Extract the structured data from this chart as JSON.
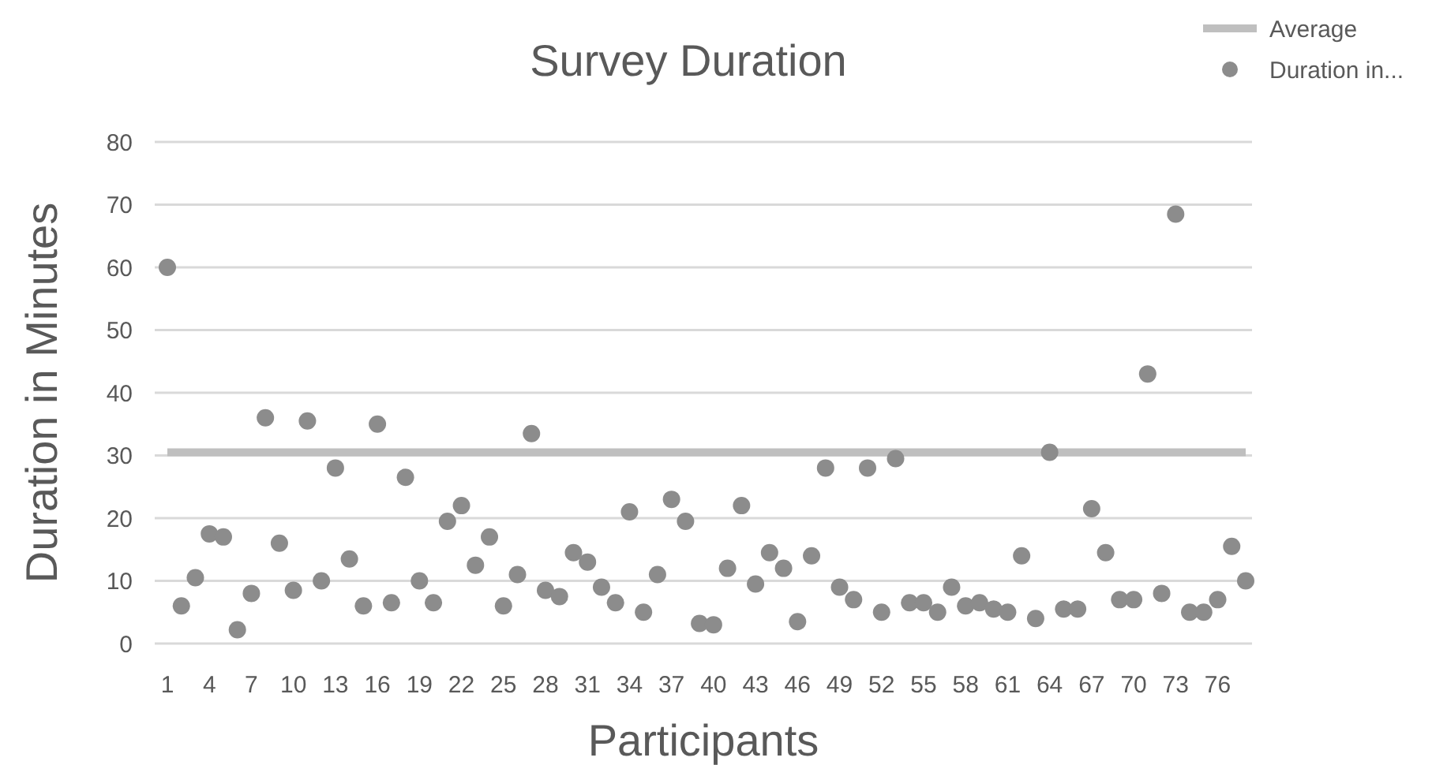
{
  "chart_data": {
    "type": "scatter",
    "title": "Survey Duration",
    "xlabel": "Participants",
    "ylabel": "Duration in Minutes",
    "categories": [
      "1",
      null,
      null,
      "4",
      null,
      null,
      "7",
      null,
      null,
      "10",
      null,
      null,
      "13",
      null,
      null,
      "16",
      null,
      null,
      "19",
      null,
      null,
      "22",
      null,
      null,
      "25",
      null,
      null,
      "28",
      null,
      null,
      "31",
      null,
      null,
      "34",
      null,
      null,
      "37",
      null,
      null,
      "40",
      null,
      null,
      "43",
      null,
      null,
      "46",
      null,
      null,
      "49",
      null,
      null,
      "52",
      null,
      null,
      "55",
      null,
      null,
      "58",
      null,
      null,
      "61",
      null,
      null,
      "64",
      null,
      null,
      "67",
      null,
      null,
      "70",
      null,
      null,
      "73",
      null,
      null,
      "76",
      null,
      null
    ],
    "series": [
      {
        "name": "Average",
        "type": "line",
        "marker": "none",
        "color": "#bfbfbf",
        "values": [
          30.5,
          30.5,
          30.5,
          30.5,
          30.5,
          30.5,
          30.5,
          30.5,
          30.5,
          30.5,
          30.5,
          30.5,
          30.5,
          30.5,
          30.5,
          30.5,
          30.5,
          30.5,
          30.5,
          30.5,
          30.5,
          30.5,
          30.5,
          30.5,
          30.5,
          30.5,
          30.5,
          30.5,
          30.5,
          30.5,
          30.5,
          30.5,
          30.5,
          30.5,
          30.5,
          30.5,
          30.5,
          30.5,
          30.5,
          30.5,
          30.5,
          30.5,
          30.5,
          30.5,
          30.5,
          30.5,
          30.5,
          30.5,
          30.5,
          30.5,
          30.5,
          30.5,
          30.5,
          30.5,
          30.5,
          30.5,
          30.5,
          30.5,
          30.5,
          30.5,
          30.5,
          30.5,
          30.5,
          30.5,
          30.5,
          30.5,
          30.5,
          30.5,
          30.5,
          30.5,
          30.5,
          30.5,
          30.5,
          30.5,
          30.5,
          30.5,
          30.5,
          30.5
        ]
      },
      {
        "name": "Duration in...",
        "marker": "circle",
        "color": "#8c8c8c",
        "values": [
          60,
          6,
          10.5,
          17.5,
          17,
          2.2,
          8,
          36,
          16,
          8.5,
          35.5,
          10,
          28,
          13.5,
          6,
          35,
          6.5,
          26.5,
          10,
          6.5,
          19.5,
          22,
          12.5,
          17,
          6,
          11,
          33.5,
          8.5,
          7.5,
          14.5,
          13,
          9,
          6.5,
          21,
          5,
          11,
          23,
          19.5,
          3.2,
          3,
          12,
          22,
          9.5,
          14.5,
          12,
          3.5,
          14,
          28,
          9,
          7,
          28,
          5,
          29.5,
          6.5,
          6.5,
          5,
          9,
          6,
          6.5,
          5.5,
          5,
          14,
          4,
          30.5,
          5.5,
          5.5,
          21.5,
          14.5,
          7,
          7,
          43,
          8,
          68.5,
          5,
          5,
          7,
          15.5,
          10
        ]
      }
    ],
    "ylim": [
      0,
      80
    ],
    "yticks": [
      0,
      10,
      20,
      30,
      40,
      50,
      60,
      70,
      80
    ],
    "grid": "y",
    "legend": "top right"
  }
}
